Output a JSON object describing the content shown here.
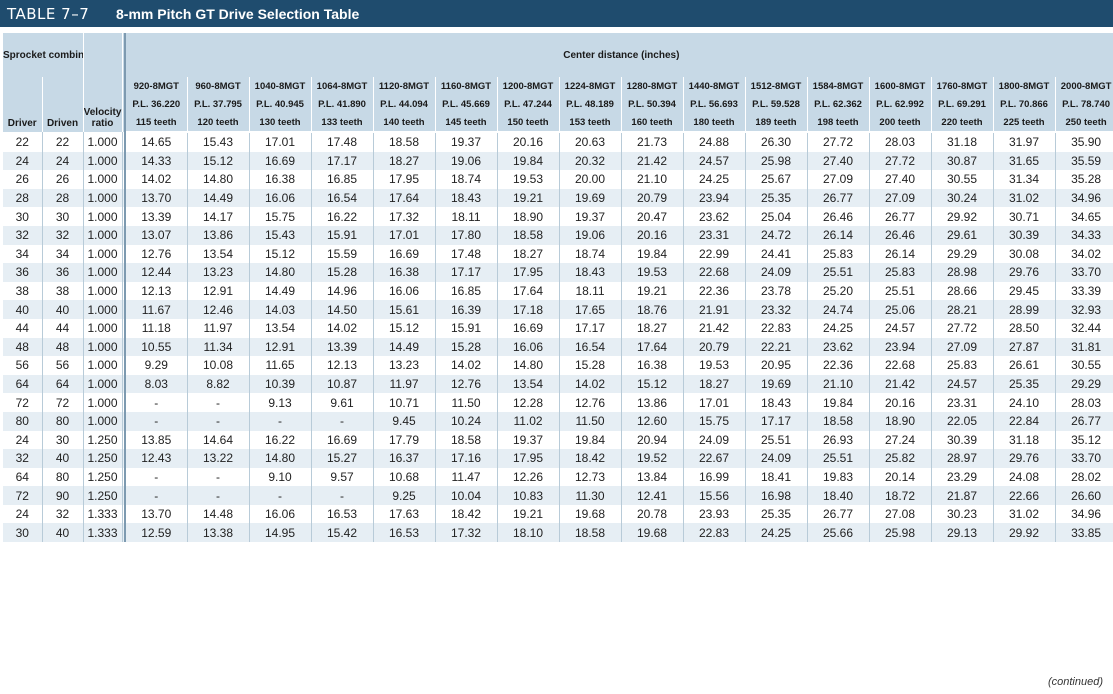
{
  "title": {
    "number": "TABLE 7–7",
    "text": "8-mm Pitch GT Drive Selection Table"
  },
  "header": {
    "sprocket_combinations": "Sprocket combinations",
    "center_distance": "Center distance (inches)",
    "driver": "Driver",
    "driven": "Driven",
    "velocity_ratio": "Velocity ratio",
    "belts": [
      {
        "name": "920-8MGT",
        "pl": "P.L. 36.220",
        "teeth": "115 teeth"
      },
      {
        "name": "960-8MGT",
        "pl": "P.L. 37.795",
        "teeth": "120 teeth"
      },
      {
        "name": "1040-8MGT",
        "pl": "P.L. 40.945",
        "teeth": "130 teeth"
      },
      {
        "name": "1064-8MGT",
        "pl": "P.L. 41.890",
        "teeth": "133 teeth"
      },
      {
        "name": "1120-8MGT",
        "pl": "P.L. 44.094",
        "teeth": "140 teeth"
      },
      {
        "name": "1160-8MGT",
        "pl": "P.L. 45.669",
        "teeth": "145 teeth"
      },
      {
        "name": "1200-8MGT",
        "pl": "P.L. 47.244",
        "teeth": "150 teeth"
      },
      {
        "name": "1224-8MGT",
        "pl": "P.L. 48.189",
        "teeth": "153 teeth"
      },
      {
        "name": "1280-8MGT",
        "pl": "P.L. 50.394",
        "teeth": "160 teeth"
      },
      {
        "name": "1440-8MGT",
        "pl": "P.L. 56.693",
        "teeth": "180 teeth"
      },
      {
        "name": "1512-8MGT",
        "pl": "P.L. 59.528",
        "teeth": "189 teeth"
      },
      {
        "name": "1584-8MGT",
        "pl": "P.L. 62.362",
        "teeth": "198 teeth"
      },
      {
        "name": "1600-8MGT",
        "pl": "P.L. 62.992",
        "teeth": "200 teeth"
      },
      {
        "name": "1760-8MGT",
        "pl": "P.L. 69.291",
        "teeth": "220 teeth"
      },
      {
        "name": "1800-8MGT",
        "pl": "P.L. 70.866",
        "teeth": "225 teeth"
      },
      {
        "name": "2000-8MGT",
        "pl": "P.L. 78.740",
        "teeth": "250 teeth"
      }
    ]
  },
  "rows": [
    {
      "driver": "22",
      "driven": "22",
      "ratio": "1.000",
      "values": [
        "14.65",
        "15.43",
        "17.01",
        "17.48",
        "18.58",
        "19.37",
        "20.16",
        "20.63",
        "21.73",
        "24.88",
        "26.30",
        "27.72",
        "28.03",
        "31.18",
        "31.97",
        "35.90"
      ]
    },
    {
      "driver": "24",
      "driven": "24",
      "ratio": "1.000",
      "values": [
        "14.33",
        "15.12",
        "16.69",
        "17.17",
        "18.27",
        "19.06",
        "19.84",
        "20.32",
        "21.42",
        "24.57",
        "25.98",
        "27.40",
        "27.72",
        "30.87",
        "31.65",
        "35.59"
      ]
    },
    {
      "driver": "26",
      "driven": "26",
      "ratio": "1.000",
      "values": [
        "14.02",
        "14.80",
        "16.38",
        "16.85",
        "17.95",
        "18.74",
        "19.53",
        "20.00",
        "21.10",
        "24.25",
        "25.67",
        "27.09",
        "27.40",
        "30.55",
        "31.34",
        "35.28"
      ]
    },
    {
      "driver": "28",
      "driven": "28",
      "ratio": "1.000",
      "values": [
        "13.70",
        "14.49",
        "16.06",
        "16.54",
        "17.64",
        "18.43",
        "19.21",
        "19.69",
        "20.79",
        "23.94",
        "25.35",
        "26.77",
        "27.09",
        "30.24",
        "31.02",
        "34.96"
      ]
    },
    {
      "driver": "30",
      "driven": "30",
      "ratio": "1.000",
      "values": [
        "13.39",
        "14.17",
        "15.75",
        "16.22",
        "17.32",
        "18.11",
        "18.90",
        "19.37",
        "20.47",
        "23.62",
        "25.04",
        "26.46",
        "26.77",
        "29.92",
        "30.71",
        "34.65"
      ]
    },
    {
      "driver": "32",
      "driven": "32",
      "ratio": "1.000",
      "values": [
        "13.07",
        "13.86",
        "15.43",
        "15.91",
        "17.01",
        "17.80",
        "18.58",
        "19.06",
        "20.16",
        "23.31",
        "24.72",
        "26.14",
        "26.46",
        "29.61",
        "30.39",
        "34.33"
      ]
    },
    {
      "driver": "34",
      "driven": "34",
      "ratio": "1.000",
      "values": [
        "12.76",
        "13.54",
        "15.12",
        "15.59",
        "16.69",
        "17.48",
        "18.27",
        "18.74",
        "19.84",
        "22.99",
        "24.41",
        "25.83",
        "26.14",
        "29.29",
        "30.08",
        "34.02"
      ]
    },
    {
      "driver": "36",
      "driven": "36",
      "ratio": "1.000",
      "values": [
        "12.44",
        "13.23",
        "14.80",
        "15.28",
        "16.38",
        "17.17",
        "17.95",
        "18.43",
        "19.53",
        "22.68",
        "24.09",
        "25.51",
        "25.83",
        "28.98",
        "29.76",
        "33.70"
      ]
    },
    {
      "driver": "38",
      "driven": "38",
      "ratio": "1.000",
      "values": [
        "12.13",
        "12.91",
        "14.49",
        "14.96",
        "16.06",
        "16.85",
        "17.64",
        "18.11",
        "19.21",
        "22.36",
        "23.78",
        "25.20",
        "25.51",
        "28.66",
        "29.45",
        "33.39"
      ]
    },
    {
      "driver": "40",
      "driven": "40",
      "ratio": "1.000",
      "values": [
        "11.67",
        "12.46",
        "14.03",
        "14.50",
        "15.61",
        "16.39",
        "17.18",
        "17.65",
        "18.76",
        "21.91",
        "23.32",
        "24.74",
        "25.06",
        "28.21",
        "28.99",
        "32.93"
      ]
    },
    {
      "driver": "44",
      "driven": "44",
      "ratio": "1.000",
      "values": [
        "11.18",
        "11.97",
        "13.54",
        "14.02",
        "15.12",
        "15.91",
        "16.69",
        "17.17",
        "18.27",
        "21.42",
        "22.83",
        "24.25",
        "24.57",
        "27.72",
        "28.50",
        "32.44"
      ]
    },
    {
      "driver": "48",
      "driven": "48",
      "ratio": "1.000",
      "values": [
        "10.55",
        "11.34",
        "12.91",
        "13.39",
        "14.49",
        "15.28",
        "16.06",
        "16.54",
        "17.64",
        "20.79",
        "22.21",
        "23.62",
        "23.94",
        "27.09",
        "27.87",
        "31.81"
      ]
    },
    {
      "driver": "56",
      "driven": "56",
      "ratio": "1.000",
      "values": [
        "9.29",
        "10.08",
        "11.65",
        "12.13",
        "13.23",
        "14.02",
        "14.80",
        "15.28",
        "16.38",
        "19.53",
        "20.95",
        "22.36",
        "22.68",
        "25.83",
        "26.61",
        "30.55"
      ]
    },
    {
      "driver": "64",
      "driven": "64",
      "ratio": "1.000",
      "values": [
        "8.03",
        "8.82",
        "10.39",
        "10.87",
        "11.97",
        "12.76",
        "13.54",
        "14.02",
        "15.12",
        "18.27",
        "19.69",
        "21.10",
        "21.42",
        "24.57",
        "25.35",
        "29.29"
      ]
    },
    {
      "driver": "72",
      "driven": "72",
      "ratio": "1.000",
      "values": [
        "-",
        "-",
        "9.13",
        "9.61",
        "10.71",
        "11.50",
        "12.28",
        "12.76",
        "13.86",
        "17.01",
        "18.43",
        "19.84",
        "20.16",
        "23.31",
        "24.10",
        "28.03"
      ]
    },
    {
      "driver": "80",
      "driven": "80",
      "ratio": "1.000",
      "values": [
        "-",
        "-",
        "-",
        "-",
        "9.45",
        "10.24",
        "11.02",
        "11.50",
        "12.60",
        "15.75",
        "17.17",
        "18.58",
        "18.90",
        "22.05",
        "22.84",
        "26.77"
      ]
    },
    {
      "driver": "24",
      "driven": "30",
      "ratio": "1.250",
      "values": [
        "13.85",
        "14.64",
        "16.22",
        "16.69",
        "17.79",
        "18.58",
        "19.37",
        "19.84",
        "20.94",
        "24.09",
        "25.51",
        "26.93",
        "27.24",
        "30.39",
        "31.18",
        "35.12"
      ]
    },
    {
      "driver": "32",
      "driven": "40",
      "ratio": "1.250",
      "values": [
        "12.43",
        "13.22",
        "14.80",
        "15.27",
        "16.37",
        "17.16",
        "17.95",
        "18.42",
        "19.52",
        "22.67",
        "24.09",
        "25.51",
        "25.82",
        "28.97",
        "29.76",
        "33.70"
      ]
    },
    {
      "driver": "64",
      "driven": "80",
      "ratio": "1.250",
      "values": [
        "-",
        "-",
        "9.10",
        "9.57",
        "10.68",
        "11.47",
        "12.26",
        "12.73",
        "13.84",
        "16.99",
        "18.41",
        "19.83",
        "20.14",
        "23.29",
        "24.08",
        "28.02"
      ]
    },
    {
      "driver": "72",
      "driven": "90",
      "ratio": "1.250",
      "values": [
        "-",
        "-",
        "-",
        "-",
        "9.25",
        "10.04",
        "10.83",
        "11.30",
        "12.41",
        "15.56",
        "16.98",
        "18.40",
        "18.72",
        "21.87",
        "22.66",
        "26.60"
      ]
    },
    {
      "driver": "24",
      "driven": "32",
      "ratio": "1.333",
      "values": [
        "13.70",
        "14.48",
        "16.06",
        "16.53",
        "17.63",
        "18.42",
        "19.21",
        "19.68",
        "20.78",
        "23.93",
        "25.35",
        "26.77",
        "27.08",
        "30.23",
        "31.02",
        "34.96"
      ]
    },
    {
      "driver": "30",
      "driven": "40",
      "ratio": "1.333",
      "values": [
        "12.59",
        "13.38",
        "14.95",
        "15.42",
        "16.53",
        "17.32",
        "18.10",
        "18.58",
        "19.68",
        "22.83",
        "24.25",
        "25.66",
        "25.98",
        "29.13",
        "29.92",
        "33.85"
      ]
    }
  ],
  "footer": {
    "continued": "(continued)"
  }
}
